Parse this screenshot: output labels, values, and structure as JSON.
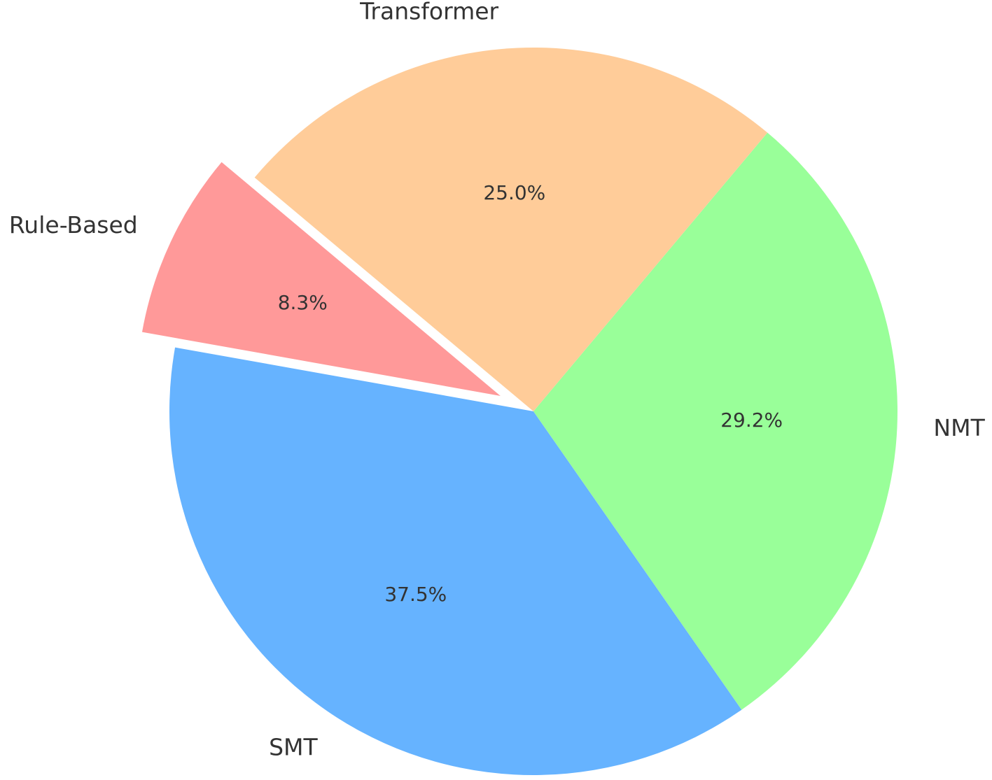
{
  "chart_data": {
    "type": "pie",
    "categories": [
      "Rule-Based",
      "SMT",
      "NMT",
      "Transformer"
    ],
    "values": [
      8.3,
      37.5,
      29.2,
      25.0
    ],
    "value_labels": [
      "8.3%",
      "37.5%",
      "29.2%",
      "25.0%"
    ],
    "colors": [
      "#ff9999",
      "#66b3ff",
      "#99ff99",
      "#ffcc99"
    ]
  }
}
